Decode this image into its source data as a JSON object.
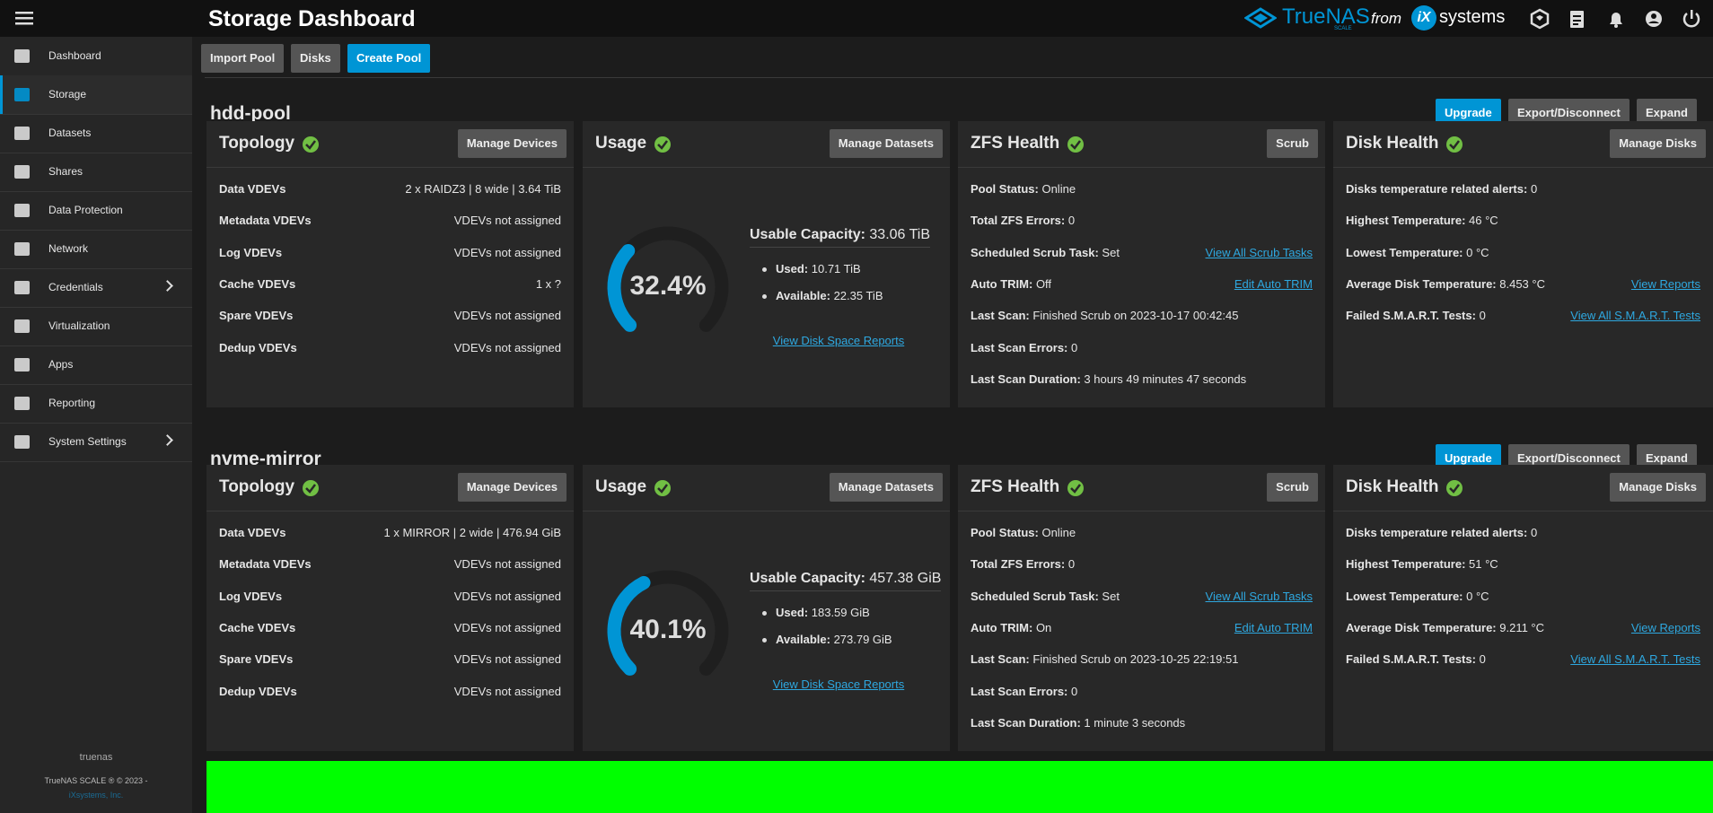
{
  "header": {
    "title": "Storage Dashboard",
    "brand": "TrueNAS",
    "edition": "SCALE",
    "from": "from",
    "vendor_mark": "iX",
    "vendor": "systems"
  },
  "sidebar": {
    "items": [
      {
        "label": "Dashboard"
      },
      {
        "label": "Storage",
        "active": true
      },
      {
        "label": "Datasets"
      },
      {
        "label": "Shares"
      },
      {
        "label": "Data Protection"
      },
      {
        "label": "Network"
      },
      {
        "label": "Credentials",
        "expandable": true
      },
      {
        "label": "Virtualization"
      },
      {
        "label": "Apps"
      },
      {
        "label": "Reporting"
      },
      {
        "label": "System Settings",
        "expandable": true
      }
    ],
    "hostname": "truenas",
    "copyright": "TrueNAS SCALE ® © 2023 -",
    "company": "iXsystems, Inc."
  },
  "toolbar": {
    "buttons": [
      {
        "label": "Import Pool"
      },
      {
        "label": "Disks"
      },
      {
        "label": "Create Pool",
        "primary": true
      }
    ]
  },
  "pools": [
    {
      "name": "hdd-pool",
      "actions": [
        {
          "label": "Upgrade",
          "primary": true
        },
        {
          "label": "Export/Disconnect"
        },
        {
          "label": "Expand"
        }
      ],
      "topology": {
        "title": "Topology",
        "button": "Manage Devices",
        "rows": [
          [
            "Data VDEVs",
            "2 x RAIDZ3 | 8 wide | 3.64 TiB"
          ],
          [
            "Metadata VDEVs",
            "VDEVs not assigned"
          ],
          [
            "Log VDEVs",
            "VDEVs not assigned"
          ],
          [
            "Cache VDEVs",
            "1 x ?"
          ],
          [
            "Spare VDEVs",
            "VDEVs not assigned"
          ],
          [
            "Dedup VDEVs",
            "VDEVs not assigned"
          ]
        ]
      },
      "usage": {
        "title": "Usage",
        "button": "Manage Datasets",
        "percent": "32.4%",
        "capacity_label": "Usable Capacity:",
        "capacity": "33.06 TiB",
        "used_label": "Used:",
        "used": "10.71 TiB",
        "available_label": "Available:",
        "available": "22.35 TiB",
        "link": "View Disk Space Reports"
      },
      "zfs": {
        "title": "ZFS Health",
        "button": "Scrub",
        "rows": [
          {
            "label": "Pool Status:",
            "value": "Online"
          },
          {
            "label": "Total ZFS Errors:",
            "value": "0"
          },
          {
            "label": "Scheduled Scrub Task:",
            "value": "Set",
            "link": "View All Scrub Tasks"
          },
          {
            "label": "Auto TRIM:",
            "value": "Off",
            "link": "Edit Auto TRIM"
          },
          {
            "label": "Last Scan:",
            "value": "Finished Scrub on 2023-10-17 00:42:45"
          },
          {
            "label": "Last Scan Errors:",
            "value": "0"
          },
          {
            "label": "Last Scan Duration:",
            "value": "3 hours 49 minutes 47 seconds"
          }
        ]
      },
      "disks": {
        "title": "Disk Health",
        "button": "Manage Disks",
        "rows": [
          {
            "label": "Disks temperature related alerts:",
            "value": "0"
          },
          {
            "label": "Highest Temperature:",
            "value": "46 °C"
          },
          {
            "label": "Lowest Temperature:",
            "value": "0 °C"
          },
          {
            "label": "Average Disk Temperature:",
            "value": "8.453 °C",
            "link": "View Reports"
          },
          {
            "label": "Failed S.M.A.R.T. Tests:",
            "value": "0",
            "link": "View All S.M.A.R.T. Tests"
          }
        ]
      }
    },
    {
      "name": "nvme-mirror",
      "actions": [
        {
          "label": "Upgrade",
          "primary": true
        },
        {
          "label": "Export/Disconnect"
        },
        {
          "label": "Expand"
        }
      ],
      "topology": {
        "title": "Topology",
        "button": "Manage Devices",
        "rows": [
          [
            "Data VDEVs",
            "1 x MIRROR | 2 wide | 476.94 GiB"
          ],
          [
            "Metadata VDEVs",
            "VDEVs not assigned"
          ],
          [
            "Log VDEVs",
            "VDEVs not assigned"
          ],
          [
            "Cache VDEVs",
            "VDEVs not assigned"
          ],
          [
            "Spare VDEVs",
            "VDEVs not assigned"
          ],
          [
            "Dedup VDEVs",
            "VDEVs not assigned"
          ]
        ]
      },
      "usage": {
        "title": "Usage",
        "button": "Manage Datasets",
        "percent": "40.1%",
        "capacity_label": "Usable Capacity:",
        "capacity": "457.38 GiB",
        "used_label": "Used:",
        "used": "183.59 GiB",
        "available_label": "Available:",
        "available": "273.79 GiB",
        "link": "View Disk Space Reports"
      },
      "zfs": {
        "title": "ZFS Health",
        "button": "Scrub",
        "rows": [
          {
            "label": "Pool Status:",
            "value": "Online"
          },
          {
            "label": "Total ZFS Errors:",
            "value": "0"
          },
          {
            "label": "Scheduled Scrub Task:",
            "value": "Set",
            "link": "View All Scrub Tasks"
          },
          {
            "label": "Auto TRIM:",
            "value": "On",
            "link": "Edit Auto TRIM"
          },
          {
            "label": "Last Scan:",
            "value": "Finished Scrub on 2023-10-25 22:19:51"
          },
          {
            "label": "Last Scan Errors:",
            "value": "0"
          },
          {
            "label": "Last Scan Duration:",
            "value": "1 minute 3 seconds"
          }
        ]
      },
      "disks": {
        "title": "Disk Health",
        "button": "Manage Disks",
        "rows": [
          {
            "label": "Disks temperature related alerts:",
            "value": "0"
          },
          {
            "label": "Highest Temperature:",
            "value": "51 °C"
          },
          {
            "label": "Lowest Temperature:",
            "value": "0 °C"
          },
          {
            "label": "Average Disk Temperature:",
            "value": "9.211 °C",
            "link": "View Reports"
          },
          {
            "label": "Failed S.M.A.R.T. Tests:",
            "value": "0",
            "link": "View All S.M.A.R.T. Tests"
          }
        ]
      }
    }
  ]
}
